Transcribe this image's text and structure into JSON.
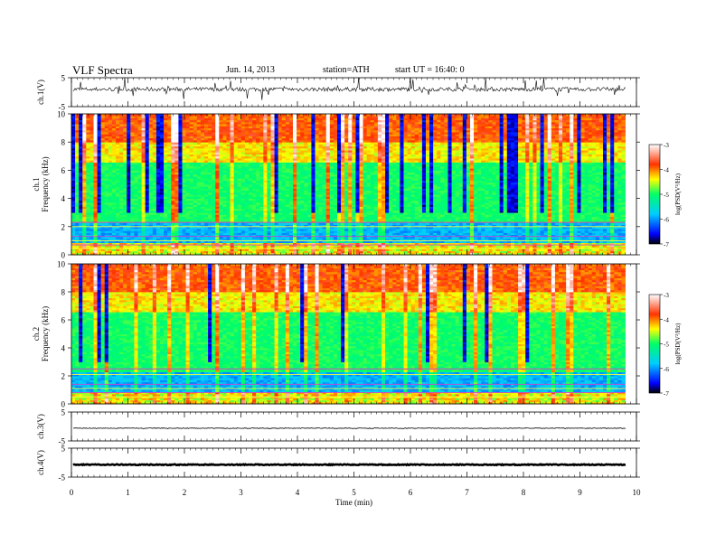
{
  "header": {
    "title": "VLF Spectra",
    "date": "Jun. 14, 2013",
    "station": "station=ATH",
    "start_time": "start UT =  16:40: 0"
  },
  "chart_data": [
    {
      "type": "line",
      "name": "ch1-waveform",
      "ylabel": "ch.1(V)",
      "ylim": [
        -5,
        5
      ],
      "yticks": [
        "5",
        "-5"
      ],
      "xlim": [
        0,
        10
      ],
      "note": "noisy waveform centered near 1 V with spikes"
    },
    {
      "type": "heatmap",
      "name": "ch1-spectrogram",
      "ylabel": "ch.1\nFrequency (kHz)",
      "ylim": [
        0,
        10
      ],
      "yticks": [
        "0",
        "2",
        "4",
        "6",
        "8",
        "10"
      ],
      "xlim": [
        0,
        10
      ],
      "data_end_min": 9.8,
      "colorbar": {
        "label": "log(PSD(V²/Hz)",
        "range": [
          -7,
          -3
        ],
        "ticks": [
          "-3",
          "-4",
          "-5",
          "-6",
          "-7"
        ]
      }
    },
    {
      "type": "heatmap",
      "name": "ch2-spectrogram",
      "ylabel": "ch.2\nFrequency (kHz)",
      "ylim": [
        0,
        10
      ],
      "yticks": [
        "0",
        "2",
        "4",
        "6",
        "8",
        "10"
      ],
      "xlim": [
        0,
        10
      ],
      "data_end_min": 9.8,
      "colorbar": {
        "label": "log(PSD(V²/Hz)",
        "range": [
          -7,
          -3
        ],
        "ticks": [
          "-3",
          "-4",
          "-5",
          "-6",
          "-7"
        ]
      }
    },
    {
      "type": "line",
      "name": "ch3-waveform",
      "ylabel": "ch.3(V)",
      "ylim": [
        -5,
        5
      ],
      "yticks": [
        "5",
        "-5"
      ],
      "xlim": [
        0,
        10
      ],
      "note": "near-constant line slightly below 0 V"
    },
    {
      "type": "line",
      "name": "ch4-waveform",
      "ylabel": "ch.4(V)",
      "ylim": [
        -5,
        5
      ],
      "yticks": [
        "5",
        "-5"
      ],
      "xlim": [
        0,
        10
      ],
      "xlabel": "Time (min)",
      "xticks": [
        "0",
        "1",
        "2",
        "3",
        "4",
        "5",
        "6",
        "7",
        "8",
        "9",
        "10"
      ],
      "note": "thick near-constant line slightly below 0 V"
    }
  ]
}
